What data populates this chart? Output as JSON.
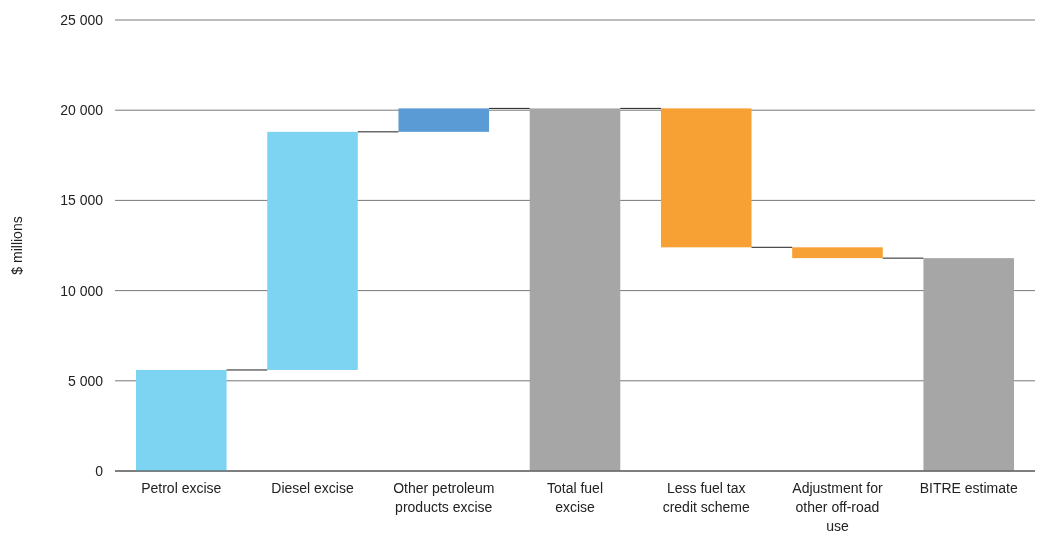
{
  "chart_data": {
    "type": "bar",
    "ylabel": "$ millions",
    "categories": [
      "Petrol excise",
      "Diesel excise",
      "Other petroleum products excise",
      "Total fuel excise",
      "Less fuel tax credit scheme",
      "Adjustment for other off-road use",
      "BITRE estimate"
    ],
    "values": [
      5600,
      13200,
      1300,
      20100,
      -7700,
      -600,
      11800
    ],
    "base": [
      0,
      5600,
      18800,
      0,
      20100,
      12400,
      0
    ],
    "colors": [
      "#7dd3f2",
      "#7dd3f2",
      "#5b9bd5",
      "#a6a6a6",
      "#f7a033",
      "#f7a033",
      "#a6a6a6"
    ],
    "ylim": [
      0,
      25000
    ],
    "yticks": [
      0,
      {
        "value": 5000,
        "label": "5 000"
      },
      {
        "value": 10000,
        "label": "10 000"
      },
      {
        "value": 15000,
        "label": "15 000"
      },
      {
        "value": 20000,
        "label": "20 000"
      },
      {
        "value": 25000,
        "label": "25 000"
      }
    ],
    "grid": "y"
  }
}
